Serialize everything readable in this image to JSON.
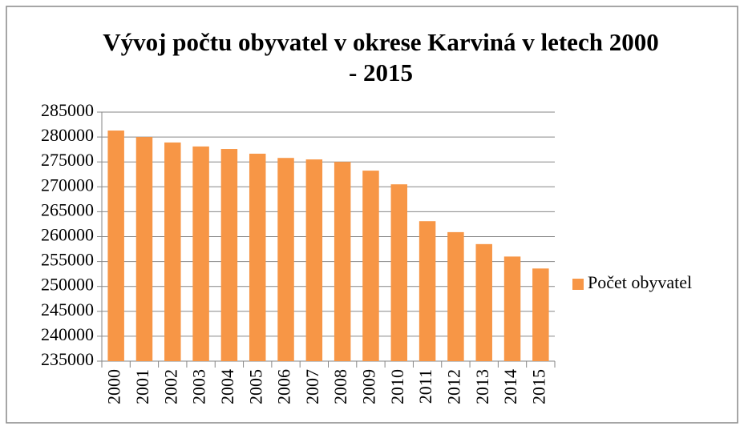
{
  "chart_data": {
    "type": "bar",
    "title": "Vývoj počtu obyvatel v okrese Karviná v letech 2000 - 2015",
    "categories": [
      "2000",
      "2001",
      "2002",
      "2003",
      "2004",
      "2005",
      "2006",
      "2007",
      "2008",
      "2009",
      "2010",
      "2011",
      "2012",
      "2013",
      "2014",
      "2015"
    ],
    "series": [
      {
        "name": "Počet obyvatel",
        "color": "#f79646",
        "values": [
          281300,
          280000,
          278900,
          278100,
          277600,
          276650,
          275800,
          275500,
          275000,
          273250,
          270500,
          263100,
          260900,
          258500,
          256000,
          253600
        ]
      }
    ],
    "ylim": [
      235000,
      285000
    ],
    "yticks": [
      235000,
      240000,
      245000,
      250000,
      255000,
      260000,
      265000,
      270000,
      275000,
      280000,
      285000
    ],
    "grid": true,
    "legend": "right"
  }
}
